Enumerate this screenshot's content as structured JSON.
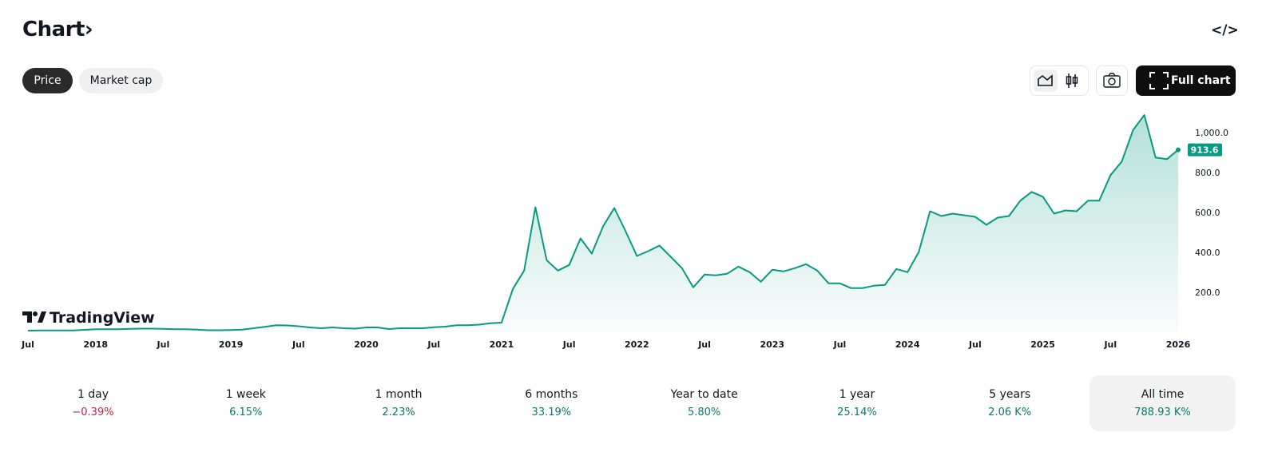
{
  "header": {
    "title": "Chart›",
    "embed_icon": "</>"
  },
  "tabs": [
    "Price",
    "Market cap"
  ],
  "full_chart": "Full chart",
  "logo": "TradingView",
  "chart_data": {
    "type": "line",
    "color": "#089981",
    "x": [
      "2017-07",
      "2017-08",
      "2017-09",
      "2017-10",
      "2017-11",
      "2017-12",
      "2018-01",
      "2018-02",
      "2018-03",
      "2018-04",
      "2018-05",
      "2018-06",
      "2018-07",
      "2018-08",
      "2018-09",
      "2018-10",
      "2018-11",
      "2018-12",
      "2019-01",
      "2019-02",
      "2019-03",
      "2019-04",
      "2019-05",
      "2019-06",
      "2019-07",
      "2019-08",
      "2019-09",
      "2019-10",
      "2019-11",
      "2019-12",
      "2020-01",
      "2020-02",
      "2020-03",
      "2020-04",
      "2020-05",
      "2020-06",
      "2020-07",
      "2020-08",
      "2020-09",
      "2020-10",
      "2020-11",
      "2020-12",
      "2021-01",
      "2021-02",
      "2021-03",
      "2021-04",
      "2021-05",
      "2021-06",
      "2021-07",
      "2021-08",
      "2021-09",
      "2021-10",
      "2021-11",
      "2021-12",
      "2022-01",
      "2022-02",
      "2022-03",
      "2022-04",
      "2022-05",
      "2022-06",
      "2022-07",
      "2022-08",
      "2022-09",
      "2022-10",
      "2022-11",
      "2022-12",
      "2023-01",
      "2023-02",
      "2023-03",
      "2023-04",
      "2023-05",
      "2023-06",
      "2023-07",
      "2023-08",
      "2023-09",
      "2023-10",
      "2023-11",
      "2023-12",
      "2024-01",
      "2024-02",
      "2024-03",
      "2024-04",
      "2024-05",
      "2024-06",
      "2024-07",
      "2024-08",
      "2024-09",
      "2024-10",
      "2024-11",
      "2024-12",
      "2025-01",
      "2025-02",
      "2025-03",
      "2025-04",
      "2025-05",
      "2025-06",
      "2025-07",
      "2025-08",
      "2025-09",
      "2025-10",
      "2025-11",
      "2025-12",
      "2026-01"
    ],
    "values": [
      8,
      9,
      9,
      9,
      9,
      12,
      15,
      15,
      15,
      17,
      18,
      18,
      17,
      15,
      15,
      13,
      10,
      10,
      11,
      13,
      20,
      27,
      35,
      34,
      30,
      24,
      20,
      24,
      20,
      18,
      24,
      24,
      16,
      20,
      20,
      20,
      25,
      28,
      35,
      35,
      38,
      45,
      48,
      217,
      309,
      626,
      361,
      309,
      337,
      470,
      394,
      530,
      622,
      506,
      382,
      406,
      434,
      378,
      321,
      225,
      289,
      285,
      293,
      329,
      301,
      253,
      313,
      305,
      321,
      341,
      309,
      245,
      245,
      221,
      221,
      233,
      237,
      317,
      301,
      402,
      606,
      582,
      594,
      586,
      578,
      538,
      574,
      582,
      659,
      703,
      679,
      594,
      610,
      606,
      659,
      659,
      787,
      855,
      1012,
      1088,
      875,
      867,
      913.6
    ],
    "last_label": "913.6",
    "xlim": [
      "2017-07",
      "2026-01"
    ],
    "xticks": [
      {
        "value": "2017-07",
        "label": "Jul"
      },
      {
        "value": "2018-01",
        "label": "2018"
      },
      {
        "value": "2018-07",
        "label": "Jul"
      },
      {
        "value": "2019-01",
        "label": "2019"
      },
      {
        "value": "2019-07",
        "label": "Jul"
      },
      {
        "value": "2020-01",
        "label": "2020"
      },
      {
        "value": "2020-07",
        "label": "Jul"
      },
      {
        "value": "2021-01",
        "label": "2021"
      },
      {
        "value": "2021-07",
        "label": "Jul"
      },
      {
        "value": "2022-01",
        "label": "2022"
      },
      {
        "value": "2022-07",
        "label": "Jul"
      },
      {
        "value": "2023-01",
        "label": "2023"
      },
      {
        "value": "2023-07",
        "label": "Jul"
      },
      {
        "value": "2024-01",
        "label": "2024"
      },
      {
        "value": "2024-07",
        "label": "Jul"
      },
      {
        "value": "2025-01",
        "label": "2025"
      },
      {
        "value": "2025-07",
        "label": "Jul"
      },
      {
        "value": "2026-01",
        "label": "2026"
      }
    ],
    "ylim": [
      0,
      1100
    ],
    "yticks": [
      {
        "value": 200,
        "label": "200.0"
      },
      {
        "value": 400,
        "label": "400.0"
      },
      {
        "value": 600,
        "label": "600.0"
      },
      {
        "value": 800,
        "label": "800.0"
      },
      {
        "value": 1000,
        "label": "1,000.0"
      }
    ]
  },
  "performance": [
    {
      "period": "1 day",
      "change": "−0.39%"
    },
    {
      "period": "1 week",
      "change": "6.15%"
    },
    {
      "period": "1 month",
      "change": "2.23%"
    },
    {
      "period": "6 months",
      "change": "33.19%"
    },
    {
      "period": "Year to date",
      "change": "5.80%"
    },
    {
      "period": "1 year",
      "change": "25.14%"
    },
    {
      "period": "5 years",
      "change": "2.06 K%"
    },
    {
      "period": "All time",
      "change": "788.93 K%"
    }
  ]
}
